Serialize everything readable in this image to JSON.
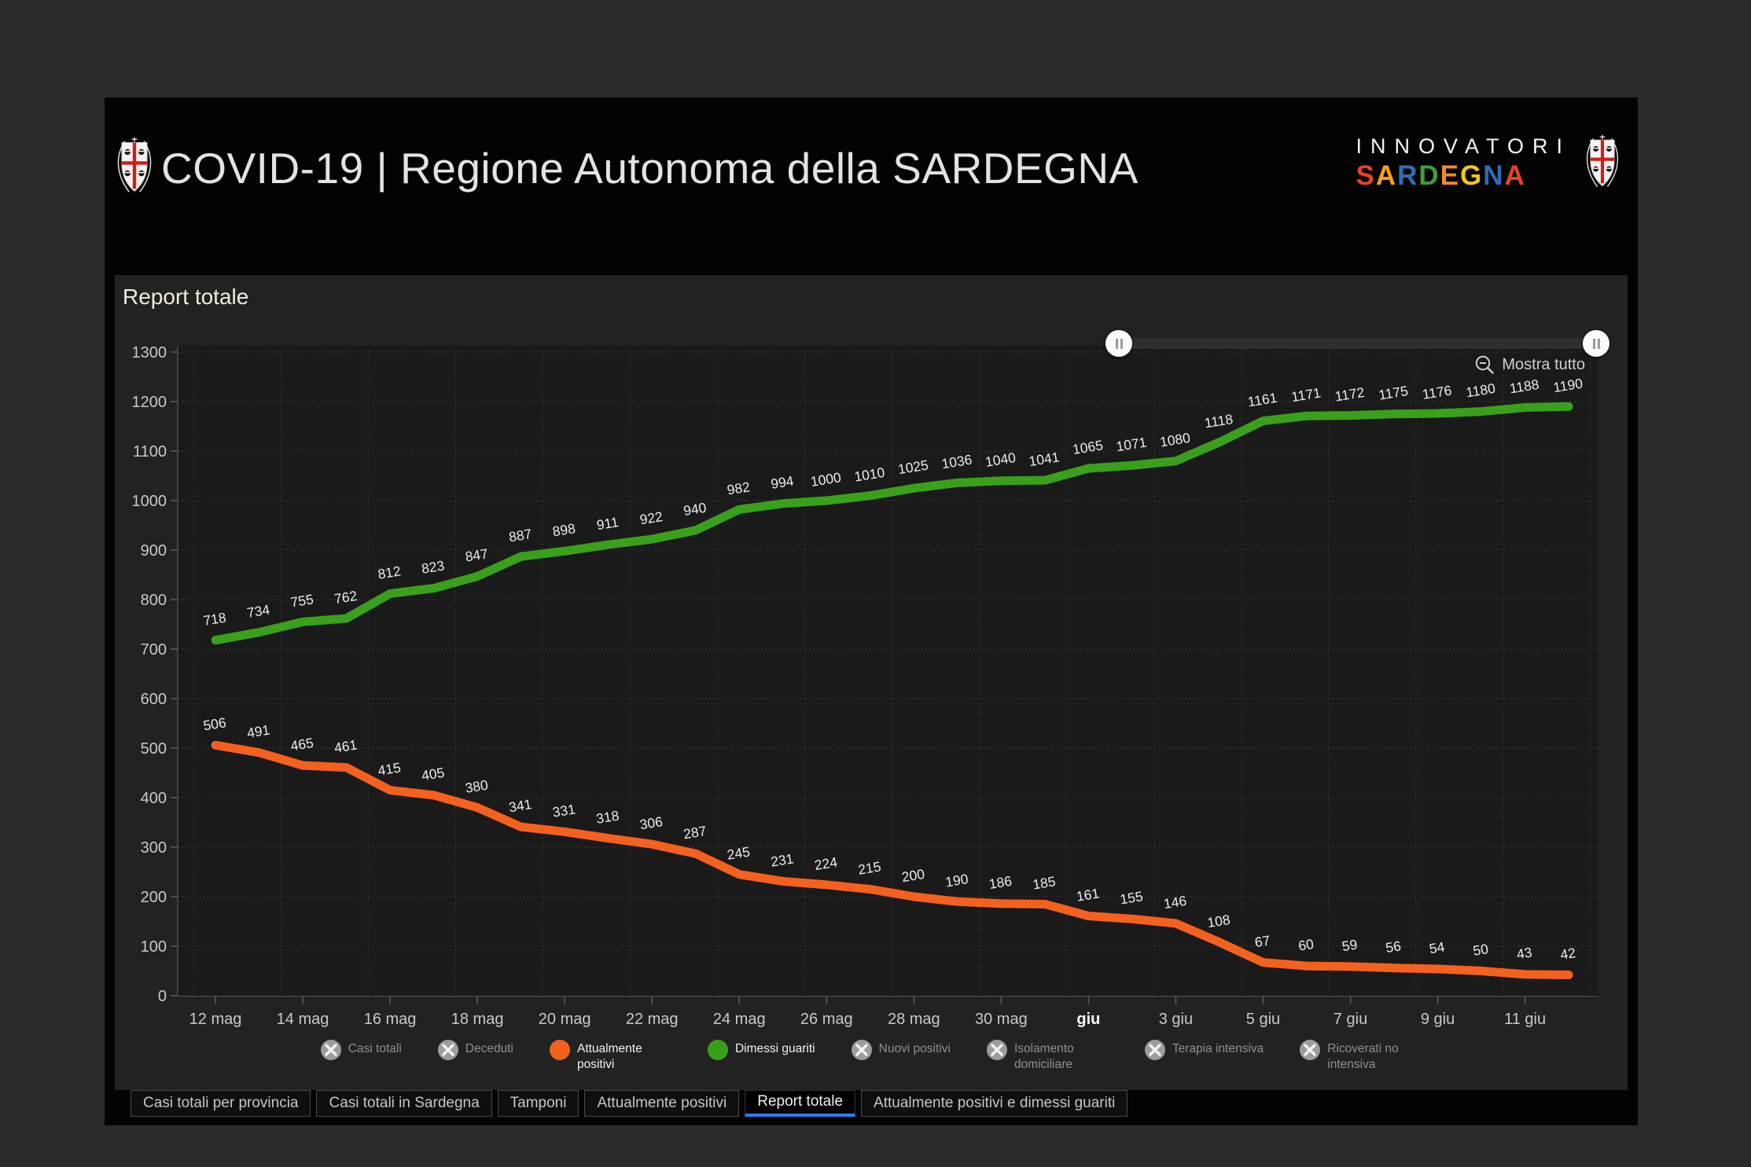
{
  "header": {
    "title": "COVID-19 | Regione Autonoma della SARDEGNA",
    "brand": {
      "top": "INNOVATORI",
      "bottom_letters": [
        {
          "char": "S",
          "color": "#e8431f"
        },
        {
          "char": "A",
          "color": "#f5a01a"
        },
        {
          "char": "R",
          "color": "#2e6db4"
        },
        {
          "char": "D",
          "color": "#3f9e3a"
        },
        {
          "char": "E",
          "color": "#f08c1e"
        },
        {
          "char": "G",
          "color": "#f5c518"
        },
        {
          "char": "N",
          "color": "#2e6db4"
        },
        {
          "char": "A",
          "color": "#e8431f"
        }
      ]
    }
  },
  "panel": {
    "title": "Report totale",
    "show_all_label": "Mostra tutto"
  },
  "chart_data": {
    "type": "line",
    "title": "Report totale",
    "x_tick_labels": [
      "12 mag",
      "14 mag",
      "16 mag",
      "18 mag",
      "20 mag",
      "22 mag",
      "24 mag",
      "26 mag",
      "28 mag",
      "30 mag",
      "giu",
      "3 giu",
      "5 giu",
      "7 giu",
      "9 giu",
      "11 giu"
    ],
    "highlight_tick": "giu",
    "tick_every": 2,
    "n_points": 32,
    "ylim": [
      0,
      1300
    ],
    "y_step": 100,
    "grid": "dotted",
    "legend_position": "bottom",
    "series": [
      {
        "name": "Dimessi guariti",
        "color": "#3aa01b",
        "values": [
          718,
          734,
          755,
          762,
          812,
          823,
          847,
          887,
          898,
          911,
          922,
          940,
          982,
          994,
          1000,
          1010,
          1025,
          1036,
          1040,
          1041,
          1065,
          1071,
          1080,
          1118,
          1161,
          1171,
          1172,
          1175,
          1176,
          1180,
          1188,
          1190
        ]
      },
      {
        "name": "Attualmente positivi",
        "color": "#f4611e",
        "values": [
          506,
          491,
          465,
          461,
          415,
          405,
          380,
          341,
          331,
          318,
          306,
          287,
          245,
          231,
          224,
          215,
          200,
          190,
          186,
          185,
          161,
          155,
          146,
          108,
          67,
          60,
          59,
          56,
          54,
          50,
          43,
          42
        ]
      }
    ],
    "legend": [
      {
        "label": "Casi totali",
        "state": "disabled"
      },
      {
        "label": "Deceduti",
        "state": "disabled"
      },
      {
        "label": "Attualmente positivi",
        "state": "active",
        "color": "#f4611e"
      },
      {
        "label": "Dimessi guariti",
        "state": "active",
        "color": "#3aa01b"
      },
      {
        "label": "Nuovi positivi",
        "state": "disabled"
      },
      {
        "label": "Isolamento domiciliare",
        "state": "disabled"
      },
      {
        "label": "Terapia intensiva",
        "state": "disabled"
      },
      {
        "label": "Ricoverati no intensiva",
        "state": "disabled"
      }
    ]
  },
  "tabs": [
    {
      "label": "Casi totali per provincia",
      "active": false
    },
    {
      "label": "Casi totali in Sardegna",
      "active": false
    },
    {
      "label": "Tamponi",
      "active": false
    },
    {
      "label": "Attualmente positivi",
      "active": false
    },
    {
      "label": "Report totale",
      "active": true
    },
    {
      "label": "Attualmente positivi e dimessi guariti",
      "active": false
    }
  ],
  "colors": {
    "page_bg": "#2b2b2b",
    "app_bg": "#030303",
    "panel_bg": "#222222",
    "plot_bg": "#1a1a1a",
    "grid": "#3a3a3a",
    "axis_text": "#c9c9c9",
    "data_label": "#ececec",
    "tab_active_underline": "#2c7ef2"
  }
}
